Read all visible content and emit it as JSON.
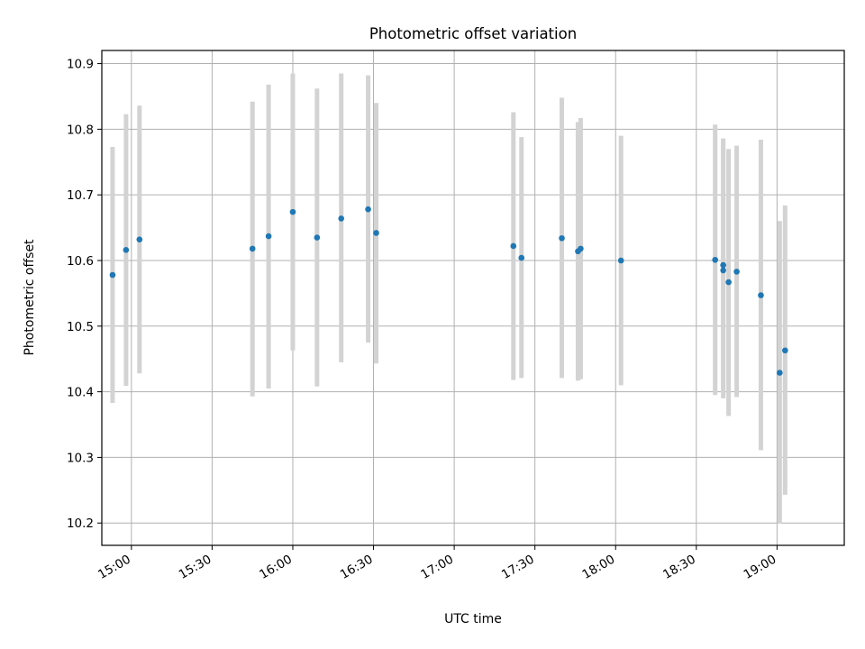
{
  "chart_data": {
    "type": "scatter",
    "title": "Photometric offset variation",
    "xlabel": "UTC time",
    "ylabel": "Photometric offset",
    "x_ticks": [
      "15:00",
      "15:30",
      "16:00",
      "16:30",
      "17:00",
      "17:30",
      "18:00",
      "18:30",
      "19:00"
    ],
    "y_ticks": [
      "10.2",
      "10.3",
      "10.4",
      "10.5",
      "10.6",
      "10.7",
      "10.8",
      "10.9"
    ],
    "xlim": [
      "14:49",
      "19:25"
    ],
    "ylim": [
      10.166,
      10.92
    ],
    "grid": true,
    "colors": {
      "marker": "#1f77b4",
      "errorbar": "#d3d3d3",
      "grid": "#b0b0b0"
    },
    "series": [
      {
        "points": [
          {
            "x": "14:53",
            "y": 10.578,
            "ylow": 10.383,
            "yhigh": 10.773
          },
          {
            "x": "14:58",
            "y": 10.616,
            "ylow": 10.409,
            "yhigh": 10.823
          },
          {
            "x": "15:03",
            "y": 10.632,
            "ylow": 10.428,
            "yhigh": 10.836
          },
          {
            "x": "15:45",
            "y": 10.618,
            "ylow": 10.393,
            "yhigh": 10.842
          },
          {
            "x": "15:51",
            "y": 10.637,
            "ylow": 10.405,
            "yhigh": 10.868
          },
          {
            "x": "16:00",
            "y": 10.674,
            "ylow": 10.463,
            "yhigh": 10.885
          },
          {
            "x": "16:09",
            "y": 10.635,
            "ylow": 10.408,
            "yhigh": 10.862
          },
          {
            "x": "16:18",
            "y": 10.664,
            "ylow": 10.445,
            "yhigh": 10.885
          },
          {
            "x": "16:28",
            "y": 10.678,
            "ylow": 10.475,
            "yhigh": 10.882
          },
          {
            "x": "16:31",
            "y": 10.642,
            "ylow": 10.443,
            "yhigh": 10.84
          },
          {
            "x": "17:22",
            "y": 10.622,
            "ylow": 10.418,
            "yhigh": 10.826
          },
          {
            "x": "17:25",
            "y": 10.604,
            "ylow": 10.421,
            "yhigh": 10.788
          },
          {
            "x": "17:40",
            "y": 10.634,
            "ylow": 10.421,
            "yhigh": 10.848
          },
          {
            "x": "17:46",
            "y": 10.614,
            "ylow": 10.417,
            "yhigh": 10.811
          },
          {
            "x": "17:47",
            "y": 10.618,
            "ylow": 10.419,
            "yhigh": 10.817
          },
          {
            "x": "18:02",
            "y": 10.6,
            "ylow": 10.41,
            "yhigh": 10.79
          },
          {
            "x": "18:37",
            "y": 10.601,
            "ylow": 10.395,
            "yhigh": 10.807
          },
          {
            "x": "18:40",
            "y": 10.593,
            "ylow": 10.399,
            "yhigh": 10.786
          },
          {
            "x": "18:40",
            "y": 10.585,
            "ylow": 10.39,
            "yhigh": 10.78
          },
          {
            "x": "18:42",
            "y": 10.567,
            "ylow": 10.363,
            "yhigh": 10.77
          },
          {
            "x": "18:45",
            "y": 10.583,
            "ylow": 10.392,
            "yhigh": 10.775
          },
          {
            "x": "18:54",
            "y": 10.547,
            "ylow": 10.311,
            "yhigh": 10.784
          },
          {
            "x": "19:01",
            "y": 10.429,
            "ylow": 10.199,
            "yhigh": 10.66
          },
          {
            "x": "19:03",
            "y": 10.463,
            "ylow": 10.243,
            "yhigh": 10.684
          }
        ]
      }
    ]
  }
}
